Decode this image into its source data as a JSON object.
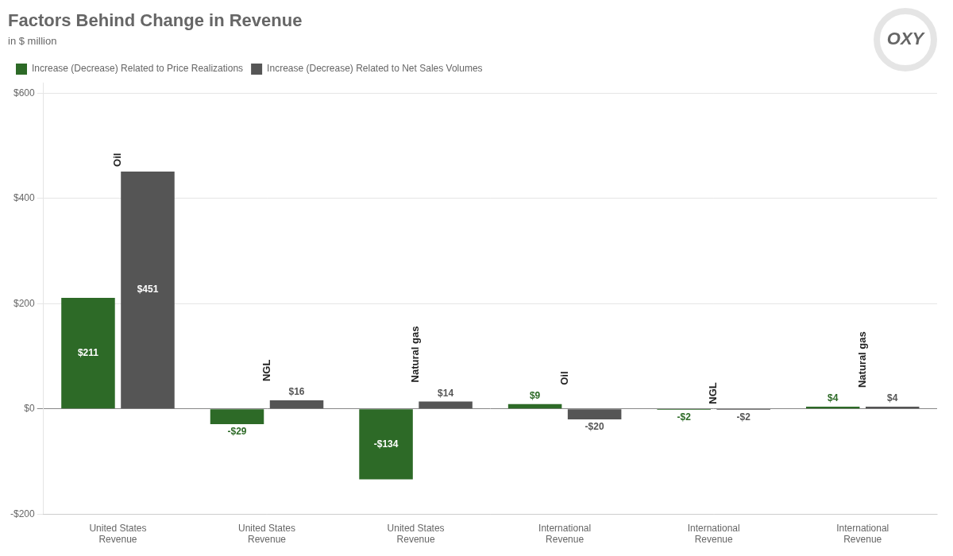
{
  "chart_data": {
    "type": "bar",
    "title": "Factors Behind Change in Revenue",
    "subtitle": "in $ million",
    "categories": [
      "United States\nRevenue",
      "United States\nRevenue",
      "United States\nRevenue",
      "International\nRevenue",
      "International\nRevenue",
      "International\nRevenue"
    ],
    "annotations": [
      "Oil",
      "NGL",
      "Natural gas",
      "Oil",
      "NGL",
      "Natural gas"
    ],
    "logo": "OXY",
    "series": [
      {
        "name": "Increase (Decrease) Related to Price Realizations",
        "color": "#2d6a27",
        "values": [
          211,
          -29,
          -134,
          9,
          -2,
          4
        ],
        "value_labels": [
          "$211",
          "-$29",
          "-$134",
          "$9",
          "-$2",
          "$4"
        ]
      },
      {
        "name": "Increase (Decrease) Related to Net Sales Volumes",
        "color": "#555555",
        "values": [
          451,
          16,
          14,
          -20,
          -2,
          4
        ],
        "value_labels": [
          "$451",
          "$16",
          "$14",
          "-$20",
          "-$2",
          "$4"
        ]
      }
    ],
    "ylim": [
      -200,
      620
    ],
    "yticks": [
      {
        "value": -200,
        "label": "-$200"
      },
      {
        "value": 0,
        "label": "$0"
      },
      {
        "value": 200,
        "label": "$200"
      },
      {
        "value": 400,
        "label": "$400"
      },
      {
        "value": 600,
        "label": "$600"
      }
    ],
    "grid": true,
    "data_labels": true,
    "legend": "top"
  }
}
